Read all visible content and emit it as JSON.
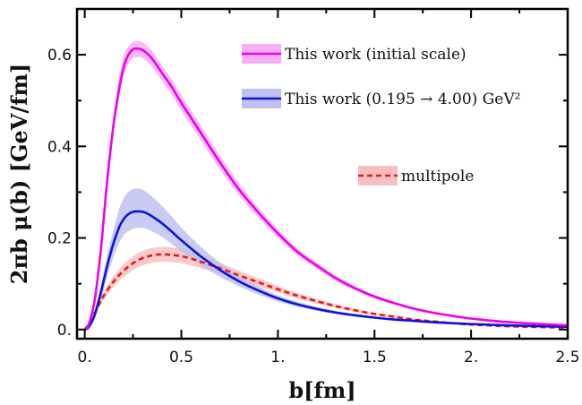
{
  "chart_data": {
    "type": "line",
    "xlabel": "b[fm]",
    "ylabel": "2πb μ(b) [GeV/fm]",
    "xlim": [
      -0.04,
      2.5
    ],
    "ylim": [
      -0.02,
      0.7
    ],
    "xticks": [
      0,
      0.5,
      1,
      1.5,
      2,
      2.5
    ],
    "xtick_labels": [
      "0.",
      "0.5",
      "1.",
      "1.5",
      "2.",
      "2.5"
    ],
    "yticks": [
      0,
      0.2,
      0.4,
      0.6
    ],
    "ytick_labels": [
      "0.",
      "0.2",
      "0.4",
      "0.6"
    ],
    "grid": false,
    "legend_placement": "top-right",
    "series": [
      {
        "name": "This work (initial scale)",
        "color": "#ee00ee",
        "band_color": "#f4a6f4",
        "style": "solid",
        "x": [
          0,
          0.02,
          0.05,
          0.08,
          0.1,
          0.12,
          0.15,
          0.18,
          0.2,
          0.22,
          0.25,
          0.28,
          0.3,
          0.33,
          0.36,
          0.4,
          0.45,
          0.5,
          0.6,
          0.7,
          0.8,
          0.9,
          1.0,
          1.1,
          1.2,
          1.3,
          1.4,
          1.5,
          1.6,
          1.7,
          1.8,
          1.9,
          2.0,
          2.2,
          2.5
        ],
        "y": [
          0,
          0.01,
          0.06,
          0.16,
          0.25,
          0.34,
          0.45,
          0.53,
          0.57,
          0.595,
          0.612,
          0.613,
          0.61,
          0.6,
          0.585,
          0.56,
          0.53,
          0.495,
          0.43,
          0.365,
          0.305,
          0.255,
          0.21,
          0.17,
          0.14,
          0.112,
          0.09,
          0.072,
          0.058,
          0.046,
          0.037,
          0.03,
          0.024,
          0.016,
          0.009
        ],
        "lower": [
          0,
          0.008,
          0.05,
          0.14,
          0.23,
          0.32,
          0.43,
          0.51,
          0.55,
          0.575,
          0.592,
          0.595,
          0.592,
          0.582,
          0.567,
          0.543,
          0.513,
          0.478,
          0.414,
          0.35,
          0.292,
          0.244,
          0.2,
          0.162,
          0.133,
          0.106,
          0.085,
          0.068,
          0.055,
          0.043,
          0.035,
          0.028,
          0.022,
          0.015,
          0.008
        ],
        "upper": [
          0,
          0.012,
          0.07,
          0.18,
          0.27,
          0.36,
          0.47,
          0.555,
          0.595,
          0.615,
          0.628,
          0.63,
          0.627,
          0.617,
          0.602,
          0.577,
          0.547,
          0.512,
          0.446,
          0.38,
          0.318,
          0.266,
          0.22,
          0.178,
          0.147,
          0.118,
          0.095,
          0.076,
          0.061,
          0.049,
          0.039,
          0.032,
          0.026,
          0.017,
          0.01
        ]
      },
      {
        "name": "This work (0.195 → 4.00) GeV²",
        "color": "#0a14d8",
        "band_color": "#b8baf2",
        "style": "solid",
        "x": [
          0,
          0.02,
          0.05,
          0.08,
          0.1,
          0.12,
          0.15,
          0.18,
          0.2,
          0.22,
          0.25,
          0.28,
          0.3,
          0.33,
          0.36,
          0.4,
          0.45,
          0.5,
          0.6,
          0.7,
          0.8,
          0.9,
          1.0,
          1.1,
          1.2,
          1.3,
          1.4,
          1.5,
          1.6,
          1.7,
          1.8,
          1.9,
          2.0,
          2.2,
          2.5
        ],
        "y": [
          0,
          0.005,
          0.03,
          0.075,
          0.11,
          0.145,
          0.19,
          0.225,
          0.24,
          0.25,
          0.257,
          0.258,
          0.257,
          0.252,
          0.244,
          0.232,
          0.214,
          0.195,
          0.16,
          0.13,
          0.105,
          0.085,
          0.068,
          0.055,
          0.045,
          0.037,
          0.031,
          0.026,
          0.022,
          0.019,
          0.016,
          0.014,
          0.012,
          0.009,
          0.006
        ],
        "lower": [
          0,
          0.004,
          0.022,
          0.06,
          0.09,
          0.12,
          0.16,
          0.19,
          0.205,
          0.213,
          0.22,
          0.222,
          0.222,
          0.218,
          0.212,
          0.202,
          0.187,
          0.171,
          0.141,
          0.115,
          0.094,
          0.076,
          0.061,
          0.05,
          0.041,
          0.034,
          0.029,
          0.024,
          0.02,
          0.017,
          0.015,
          0.013,
          0.011,
          0.008,
          0.005
        ],
        "upper": [
          0,
          0.006,
          0.04,
          0.09,
          0.13,
          0.17,
          0.22,
          0.265,
          0.285,
          0.298,
          0.307,
          0.308,
          0.305,
          0.297,
          0.286,
          0.27,
          0.247,
          0.223,
          0.181,
          0.146,
          0.117,
          0.094,
          0.075,
          0.061,
          0.05,
          0.041,
          0.034,
          0.029,
          0.024,
          0.021,
          0.018,
          0.015,
          0.013,
          0.01,
          0.007
        ]
      },
      {
        "name": "multipole",
        "color": "#e41a1a",
        "band_color": "#f6b8b8",
        "style": "dashed",
        "x": [
          0,
          0.02,
          0.05,
          0.08,
          0.1,
          0.15,
          0.2,
          0.25,
          0.3,
          0.35,
          0.4,
          0.45,
          0.5,
          0.55,
          0.6,
          0.7,
          0.8,
          0.9,
          1.0,
          1.1,
          1.2,
          1.3,
          1.4,
          1.5,
          1.6,
          1.7,
          1.8,
          1.9,
          2.0,
          2.2,
          2.5
        ],
        "y": [
          0,
          0.012,
          0.035,
          0.06,
          0.075,
          0.105,
          0.128,
          0.145,
          0.156,
          0.162,
          0.164,
          0.163,
          0.16,
          0.155,
          0.148,
          0.134,
          0.118,
          0.103,
          0.088,
          0.074,
          0.062,
          0.051,
          0.042,
          0.034,
          0.028,
          0.022,
          0.018,
          0.014,
          0.011,
          0.007,
          0.004
        ],
        "lower": [
          0,
          0.01,
          0.03,
          0.052,
          0.066,
          0.093,
          0.114,
          0.13,
          0.14,
          0.146,
          0.148,
          0.147,
          0.145,
          0.14,
          0.134,
          0.122,
          0.108,
          0.094,
          0.081,
          0.068,
          0.057,
          0.047,
          0.039,
          0.031,
          0.026,
          0.02,
          0.016,
          0.013,
          0.01,
          0.006,
          0.003
        ],
        "upper": [
          0,
          0.014,
          0.04,
          0.068,
          0.084,
          0.117,
          0.142,
          0.16,
          0.172,
          0.178,
          0.18,
          0.179,
          0.176,
          0.17,
          0.162,
          0.146,
          0.128,
          0.112,
          0.095,
          0.08,
          0.067,
          0.055,
          0.045,
          0.037,
          0.03,
          0.024,
          0.02,
          0.015,
          0.012,
          0.008,
          0.005
        ]
      }
    ]
  }
}
